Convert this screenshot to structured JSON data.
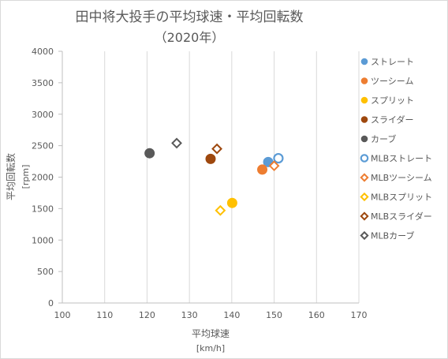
{
  "chart_data": {
    "type": "scatter",
    "title": "田中将大投手の平均球速・平均回転数",
    "subtitle": "（2020年）",
    "xlabel": "平均球速",
    "xunit": "[km/h]",
    "ylabel": "平均回転数",
    "yunit": "[rpm]",
    "xlim": [
      100,
      170
    ],
    "ylim": [
      0,
      4000
    ],
    "xticks": [
      "100",
      "110",
      "120",
      "130",
      "140",
      "150",
      "160",
      "170"
    ],
    "yticks": [
      "0",
      "500",
      "1000",
      "1500",
      "2000",
      "2500",
      "3000",
      "3500",
      "4000"
    ],
    "grid": "vertical",
    "legend_position": "right",
    "series": [
      {
        "name": "ストレート",
        "marker": "circle",
        "color": "#5B9BD5",
        "filled": true,
        "points": [
          [
            148.6,
            2240
          ]
        ]
      },
      {
        "name": "ツーシーム",
        "marker": "circle",
        "color": "#ED7D31",
        "filled": true,
        "points": [
          [
            147.2,
            2120
          ]
        ]
      },
      {
        "name": "スプリット",
        "marker": "circle",
        "color": "#FFC000",
        "filled": true,
        "points": [
          [
            140.1,
            1590
          ]
        ]
      },
      {
        "name": "スライダー",
        "marker": "circle",
        "color": "#9E480E",
        "filled": true,
        "points": [
          [
            135.0,
            2290
          ]
        ]
      },
      {
        "name": "カーブ",
        "marker": "circle",
        "color": "#595959",
        "filled": true,
        "points": [
          [
            120.6,
            2380
          ]
        ]
      },
      {
        "name": "MLBストレート",
        "marker": "circle",
        "color": "#5B9BD5",
        "filled": false,
        "points": [
          [
            151.0,
            2300
          ]
        ]
      },
      {
        "name": "MLBツーシーム",
        "marker": "diamond",
        "color": "#ED7D31",
        "filled": false,
        "points": [
          [
            150.0,
            2180
          ]
        ]
      },
      {
        "name": "MLBスプリット",
        "marker": "diamond",
        "color": "#FFC000",
        "filled": false,
        "points": [
          [
            137.3,
            1470
          ]
        ]
      },
      {
        "name": "MLBスライダー",
        "marker": "diamond",
        "color": "#9E480E",
        "filled": false,
        "points": [
          [
            136.5,
            2450
          ]
        ]
      },
      {
        "name": "MLBカーブ",
        "marker": "diamond",
        "color": "#595959",
        "filled": false,
        "points": [
          [
            127.0,
            2540
          ]
        ]
      }
    ]
  }
}
